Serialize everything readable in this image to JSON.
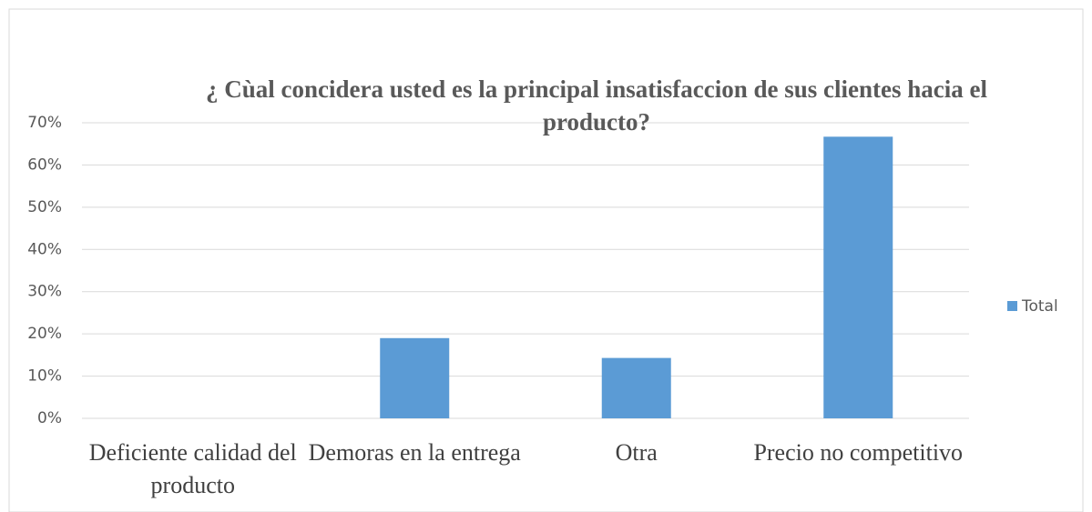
{
  "chart_data": {
    "type": "bar",
    "title": "¿ Cùal concidera usted es la principal insatisfaccion de sus clientes hacia el producto?",
    "categories": [
      "Deficiente calidad del producto",
      "Demoras en la entrega",
      "Otra",
      "Precio no competitivo"
    ],
    "series": [
      {
        "name": "Total",
        "color": "#5b9bd5",
        "values": [
          0,
          19,
          14.3,
          66.7
        ]
      }
    ],
    "ylim": [
      0,
      70
    ],
    "yticks": [
      {
        "value": 0,
        "label": "0%"
      },
      {
        "value": 10,
        "label": "10%"
      },
      {
        "value": 20,
        "label": "20%"
      },
      {
        "value": 30,
        "label": "30%"
      },
      {
        "value": 40,
        "label": "40%"
      },
      {
        "value": 50,
        "label": "50%"
      },
      {
        "value": 60,
        "label": "60%"
      },
      {
        "value": 70,
        "label": "70%"
      }
    ],
    "grid": true,
    "legend": "right"
  }
}
